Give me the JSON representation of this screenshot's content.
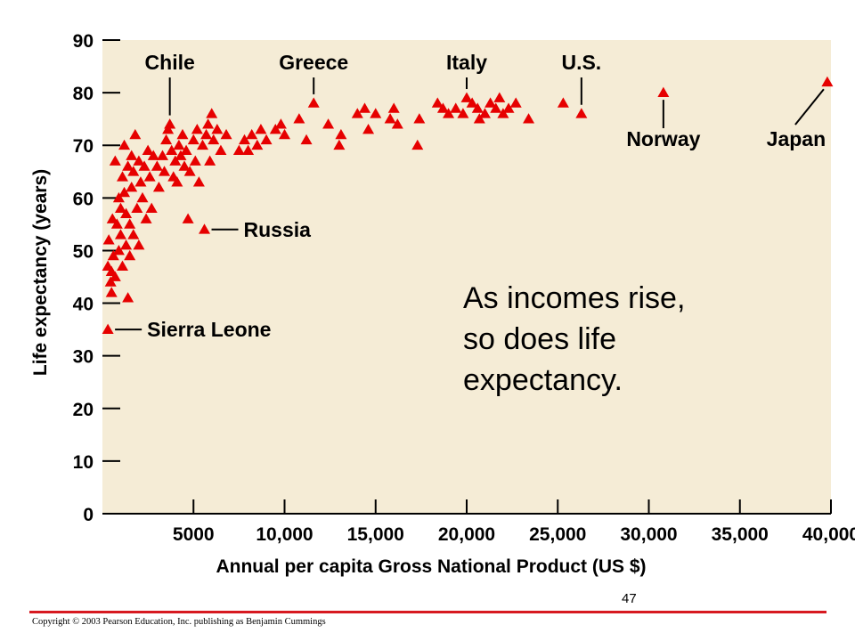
{
  "chart_data": {
    "type": "scatter",
    "xlabel": "Annual per capita Gross National Product (US $)",
    "ylabel": "Life expectancy (years)",
    "xlim": [
      0,
      40000
    ],
    "ylim": [
      0,
      90
    ],
    "x_ticks": [
      5000,
      10000,
      15000,
      20000,
      25000,
      30000,
      35000,
      40000
    ],
    "x_tick_labels": [
      "5000",
      "10,000",
      "15,000",
      "20,000",
      "25,000",
      "30,000",
      "35,000",
      "40,000"
    ],
    "y_ticks": [
      0,
      10,
      20,
      30,
      40,
      50,
      60,
      70,
      80,
      90
    ],
    "y_tick_labels": [
      "0",
      "10",
      "20",
      "30",
      "40",
      "50",
      "60",
      "70",
      "80",
      "90"
    ],
    "marker": "triangle",
    "marker_color": "#e60000",
    "background": "#f5ecd6",
    "grid": false,
    "points": [
      [
        300,
        35
      ],
      [
        300,
        47
      ],
      [
        350,
        52
      ],
      [
        450,
        44
      ],
      [
        500,
        46
      ],
      [
        500,
        42
      ],
      [
        550,
        56
      ],
      [
        600,
        49
      ],
      [
        700,
        45
      ],
      [
        700,
        67
      ],
      [
        800,
        55
      ],
      [
        900,
        60
      ],
      [
        900,
        50
      ],
      [
        1000,
        58
      ],
      [
        1000,
        53
      ],
      [
        1100,
        64
      ],
      [
        1100,
        47
      ],
      [
        1200,
        70
      ],
      [
        1200,
        61
      ],
      [
        1300,
        57
      ],
      [
        1300,
        51
      ],
      [
        1400,
        66
      ],
      [
        1400,
        41
      ],
      [
        1500,
        55
      ],
      [
        1500,
        49
      ],
      [
        1600,
        62
      ],
      [
        1600,
        68
      ],
      [
        1700,
        65
      ],
      [
        1700,
        53
      ],
      [
        1800,
        72
      ],
      [
        1900,
        58
      ],
      [
        2000,
        67
      ],
      [
        2000,
        51
      ],
      [
        2100,
        63
      ],
      [
        2200,
        60
      ],
      [
        2300,
        66
      ],
      [
        2400,
        56
      ],
      [
        2500,
        69
      ],
      [
        2600,
        64
      ],
      [
        2700,
        58
      ],
      [
        2800,
        68
      ],
      [
        3000,
        66
      ],
      [
        3100,
        62
      ],
      [
        3300,
        68
      ],
      [
        3400,
        65
      ],
      [
        3500,
        71
      ],
      [
        3600,
        73
      ],
      [
        3700,
        74
      ],
      [
        3800,
        69
      ],
      [
        3900,
        64
      ],
      [
        4000,
        67
      ],
      [
        4100,
        63
      ],
      [
        4200,
        70
      ],
      [
        4300,
        68
      ],
      [
        4400,
        72
      ],
      [
        4500,
        66
      ],
      [
        4600,
        69
      ],
      [
        4700,
        56
      ],
      [
        4800,
        65
      ],
      [
        5000,
        71
      ],
      [
        5100,
        67
      ],
      [
        5200,
        73
      ],
      [
        5300,
        63
      ],
      [
        5500,
        70
      ],
      [
        5600,
        54
      ],
      [
        5700,
        72
      ],
      [
        5800,
        74
      ],
      [
        5900,
        67
      ],
      [
        6000,
        76
      ],
      [
        6100,
        71
      ],
      [
        6300,
        73
      ],
      [
        6500,
        69
      ],
      [
        6800,
        72
      ],
      [
        7500,
        69
      ],
      [
        7800,
        71
      ],
      [
        8000,
        69
      ],
      [
        8200,
        72
      ],
      [
        8500,
        70
      ],
      [
        8700,
        73
      ],
      [
        9000,
        71
      ],
      [
        9500,
        73
      ],
      [
        9800,
        74
      ],
      [
        10000,
        72
      ],
      [
        10800,
        75
      ],
      [
        11200,
        71
      ],
      [
        11600,
        78
      ],
      [
        12400,
        74
      ],
      [
        13000,
        70
      ],
      [
        13100,
        72
      ],
      [
        14000,
        76
      ],
      [
        14400,
        77
      ],
      [
        14600,
        73
      ],
      [
        15000,
        76
      ],
      [
        15800,
        75
      ],
      [
        16000,
        77
      ],
      [
        16200,
        74
      ],
      [
        17300,
        70
      ],
      [
        17400,
        75
      ],
      [
        18400,
        78
      ],
      [
        18700,
        77
      ],
      [
        19000,
        76
      ],
      [
        19400,
        77
      ],
      [
        19800,
        76
      ],
      [
        20000,
        79
      ],
      [
        20300,
        78
      ],
      [
        20600,
        77
      ],
      [
        20700,
        75
      ],
      [
        21000,
        76
      ],
      [
        21300,
        78
      ],
      [
        21600,
        77
      ],
      [
        21800,
        79
      ],
      [
        22000,
        76
      ],
      [
        22300,
        77
      ],
      [
        22700,
        78
      ],
      [
        23400,
        75
      ],
      [
        25300,
        78
      ],
      [
        26300,
        76
      ],
      [
        30800,
        80
      ],
      [
        39800,
        82
      ]
    ],
    "annotations": [
      {
        "label": "Chile",
        "x": 3700,
        "y": 74,
        "dir": "up"
      },
      {
        "label": "Greece",
        "x": 11600,
        "y": 78,
        "dir": "up"
      },
      {
        "label": "Italy",
        "x": 20000,
        "y": 79,
        "dir": "up"
      },
      {
        "label": "U.S.",
        "x": 26300,
        "y": 76,
        "dir": "up"
      },
      {
        "label": "Norway",
        "x": 30800,
        "y": 80,
        "dir": "down"
      },
      {
        "label": "Japan",
        "x": 39800,
        "y": 82,
        "dir": "down-left"
      },
      {
        "label": "Russia",
        "x": 5600,
        "y": 54,
        "dir": "right"
      },
      {
        "label": "Sierra Leone",
        "x": 300,
        "y": 35,
        "dir": "right"
      }
    ]
  },
  "callout": {
    "line1": "As incomes rise,",
    "line2": "so does life",
    "line3": "expectancy."
  },
  "footer": {
    "page_number": "47",
    "copyright": "Copyright © 2003 Pearson Education, Inc. publishing as Benjamin Cummings",
    "rule_color": "#d71920"
  }
}
